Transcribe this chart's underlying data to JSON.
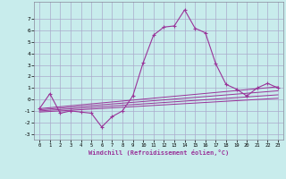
{
  "xlabel": "Windchill (Refroidissement éolien,°C)",
  "background_color": "#c8ecec",
  "grid_color": "#aaaacc",
  "line_color": "#993399",
  "xlim": [
    -0.5,
    23.5
  ],
  "ylim": [
    -3.5,
    8.5
  ],
  "xticks": [
    0,
    1,
    2,
    3,
    4,
    5,
    6,
    7,
    8,
    9,
    10,
    11,
    12,
    13,
    14,
    15,
    16,
    17,
    18,
    19,
    20,
    21,
    22,
    23
  ],
  "yticks": [
    -3,
    -2,
    -1,
    0,
    1,
    2,
    3,
    4,
    5,
    6,
    7
  ],
  "series": [
    [
      0,
      -0.8
    ],
    [
      1,
      0.5
    ],
    [
      2,
      -1.2
    ],
    [
      3,
      -1.0
    ],
    [
      4,
      -1.1
    ],
    [
      5,
      -1.2
    ],
    [
      6,
      -2.4
    ],
    [
      7,
      -1.5
    ],
    [
      8,
      -1.0
    ],
    [
      9,
      0.3
    ],
    [
      10,
      3.2
    ],
    [
      11,
      5.6
    ],
    [
      12,
      6.3
    ],
    [
      13,
      6.4
    ],
    [
      14,
      7.8
    ],
    [
      15,
      6.2
    ],
    [
      16,
      5.8
    ],
    [
      17,
      3.1
    ],
    [
      18,
      1.3
    ],
    [
      19,
      0.9
    ],
    [
      20,
      0.3
    ],
    [
      21,
      1.0
    ],
    [
      22,
      1.4
    ],
    [
      23,
      1.0
    ]
  ],
  "extra_lines": [
    [
      [
        0,
        -0.8
      ],
      [
        23,
        1.1
      ]
    ],
    [
      [
        0,
        -0.9
      ],
      [
        23,
        0.75
      ]
    ],
    [
      [
        0,
        -1.0
      ],
      [
        23,
        0.4
      ]
    ],
    [
      [
        0,
        -1.1
      ],
      [
        23,
        0.1
      ]
    ]
  ]
}
